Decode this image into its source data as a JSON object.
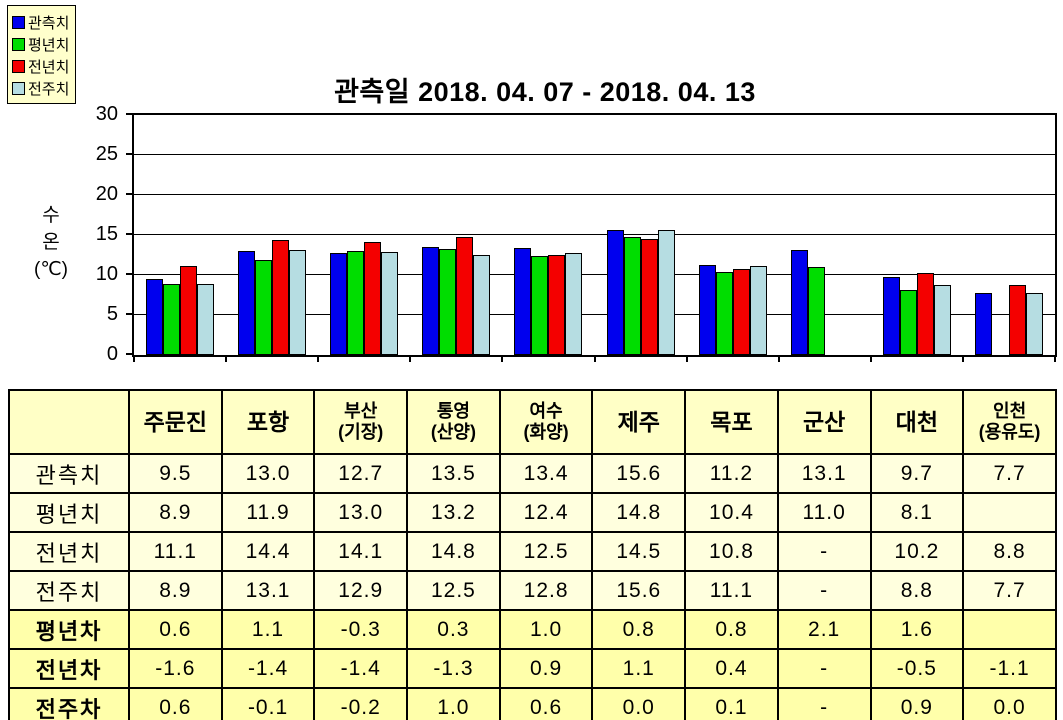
{
  "legend": {
    "items": [
      {
        "label": "관측치",
        "color": "#0000EE"
      },
      {
        "label": "평년치",
        "color": "#00DD00"
      },
      {
        "label": "전년치",
        "color": "#F40000"
      },
      {
        "label": "전주치",
        "color": "#B6DDE2"
      }
    ]
  },
  "chart_data": {
    "type": "bar",
    "title": "관측일 2018. 04. 07 - 2018. 04. 13",
    "xlabel": "",
    "ylabel": "수온(℃)",
    "ylabel_lines": [
      "수",
      "온",
      "(℃)"
    ],
    "ylim": [
      0,
      30
    ],
    "yticks": [
      0,
      5,
      10,
      15,
      20,
      25,
      30
    ],
    "grid": "horizontal",
    "legend_position": "top-left",
    "categories": [
      "주문진",
      "포항",
      "부산(기장)",
      "통영(산양)",
      "여수(화양)",
      "제주",
      "목포",
      "군산",
      "대천",
      "인천(용유도)"
    ],
    "series": [
      {
        "name": "관측치",
        "color": "#0000EE",
        "values": [
          9.5,
          13.0,
          12.7,
          13.5,
          13.4,
          15.6,
          11.2,
          13.1,
          9.7,
          7.7
        ]
      },
      {
        "name": "평년치",
        "color": "#00DD00",
        "values": [
          8.9,
          11.9,
          13.0,
          13.2,
          12.4,
          14.8,
          10.4,
          11.0,
          8.1,
          null
        ]
      },
      {
        "name": "전년치",
        "color": "#F40000",
        "values": [
          11.1,
          14.4,
          14.1,
          14.8,
          12.5,
          14.5,
          10.8,
          null,
          10.2,
          8.8
        ]
      },
      {
        "name": "전주치",
        "color": "#B6DDE2",
        "values": [
          8.9,
          13.1,
          12.9,
          12.5,
          12.8,
          15.6,
          11.1,
          null,
          8.8,
          7.7
        ]
      }
    ]
  },
  "table": {
    "header": [
      "",
      "주문진",
      "포항",
      "부산\n(기장)",
      "통영\n(산양)",
      "여수\n(화양)",
      "제주",
      "목포",
      "군산",
      "대천",
      "인천\n(용유도)"
    ],
    "rows": [
      {
        "label": "관측치",
        "bold": false,
        "values": [
          "9.5",
          "13.0",
          "12.7",
          "13.5",
          "13.4",
          "15.6",
          "11.2",
          "13.1",
          "9.7",
          "7.7"
        ]
      },
      {
        "label": "평년치",
        "bold": false,
        "values": [
          "8.9",
          "11.9",
          "13.0",
          "13.2",
          "12.4",
          "14.8",
          "10.4",
          "11.0",
          "8.1",
          ""
        ]
      },
      {
        "label": "전년치",
        "bold": false,
        "values": [
          "11.1",
          "14.4",
          "14.1",
          "14.8",
          "12.5",
          "14.5",
          "10.8",
          "-",
          "10.2",
          "8.8"
        ]
      },
      {
        "label": "전주치",
        "bold": false,
        "values": [
          "8.9",
          "13.1",
          "12.9",
          "12.5",
          "12.8",
          "15.6",
          "11.1",
          "-",
          "8.8",
          "7.7"
        ]
      },
      {
        "label": "평년차",
        "bold": true,
        "values": [
          "0.6",
          "1.1",
          "-0.3",
          "0.3",
          "1.0",
          "0.8",
          "0.8",
          "2.1",
          "1.6",
          ""
        ]
      },
      {
        "label": "전년차",
        "bold": true,
        "values": [
          "-1.6",
          "-1.4",
          "-1.4",
          "-1.3",
          "0.9",
          "1.1",
          "0.4",
          "-",
          "-0.5",
          "-1.1"
        ]
      },
      {
        "label": "전주차",
        "bold": true,
        "values": [
          "0.6",
          "-0.1",
          "-0.2",
          "1.0",
          "0.6",
          "0.0",
          "0.1",
          "-",
          "0.9",
          "0.0"
        ]
      }
    ]
  },
  "colors": {
    "legend_bg": "#FFFFCC",
    "table_header_bg": "#FFFFC6",
    "table_value_row_bg": "#FFFFDE",
    "table_diff_row_bg": "#FFFFAA",
    "axis": "#000000"
  }
}
